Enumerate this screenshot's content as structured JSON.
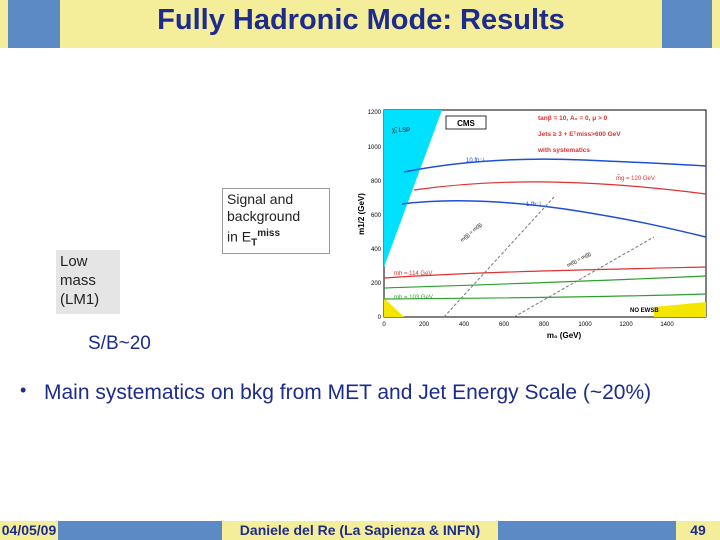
{
  "slide": {
    "title": "Fully Hadronic Mode: Results",
    "signal_label_line1": "Signal and",
    "signal_label_line2": "background",
    "signal_label_line3": "in E",
    "signal_label_sub": "T",
    "signal_label_sup": "miss",
    "low_mass_line1": "Low",
    "low_mass_line2": "mass",
    "low_mass_line3": "(LM1)",
    "sb_text": "S/B~20",
    "bullet": "Main systematics on bkg from MET and Jet Energy Scale (~20%)"
  },
  "footer": {
    "date": "04/05/09",
    "author": "Daniele del Re (La Sapienza & INFN)",
    "page": "49"
  },
  "plot": {
    "cms_label": "CMS",
    "lsp_label": "χ̃₁ LSP",
    "params_line1": "tanβ = 10, A₀ = 0, μ > 0",
    "params_line2": "Jets ≥ 3 + Eᵀmiss>600 GeV",
    "params_line3": "with systematics",
    "lumi_10": "10 fb⁻¹",
    "lumi_1": "1 fb⁻¹",
    "mg_label": "m̃g = 120 GeV",
    "mh114": "mh = 114 GeV",
    "mh103": "mh = 103 GeV",
    "no_ewsb": "NO EWSB",
    "diag1": "m(g̃) = m(q̃)",
    "diag2": "m(q̃) = m(g̃)",
    "xlabel": "m₀ (GeV)",
    "ylabel": "m1/2 (GeV)",
    "xticks": [
      "0",
      "200",
      "400",
      "600",
      "800",
      "1000",
      "1200",
      "1400"
    ],
    "yticks": [
      "0",
      "200",
      "400",
      "600",
      "800",
      "1000",
      "1200"
    ],
    "colors": {
      "lsp": "#00e0ff",
      "blue": "#1f4fd8",
      "red": "#e03030",
      "green": "#2ea02e",
      "yellow": "#f5e600"
    }
  }
}
